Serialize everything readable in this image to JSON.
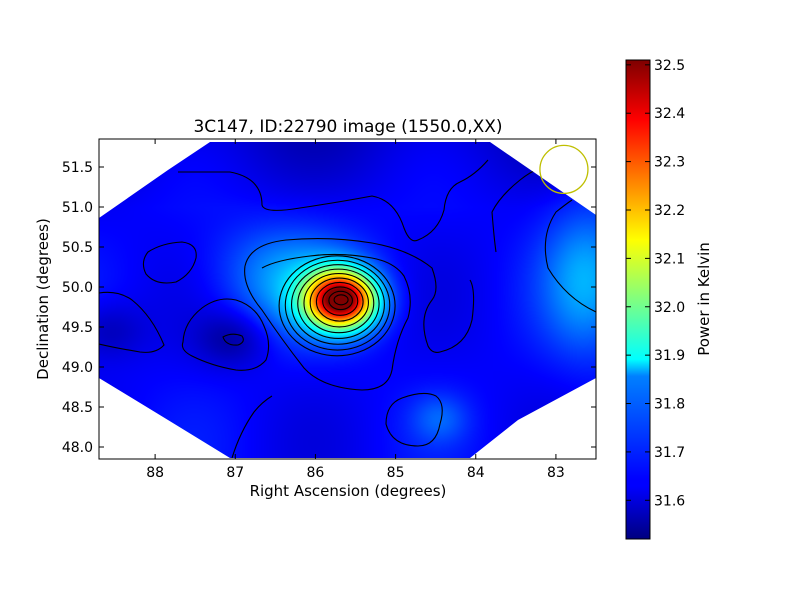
{
  "chart_data": {
    "type": "heatmap",
    "title": "3C147, ID:22790 image (1550.0,XX)",
    "xlabel": "Right Ascension (degrees)",
    "ylabel": "Declination (degrees)",
    "xlim": [
      88.7,
      82.5
    ],
    "ylim": [
      47.85,
      51.85
    ],
    "x_axis_inverted": true,
    "x_ticks": [
      "88",
      "87",
      "86",
      "85",
      "84",
      "83"
    ],
    "x_tick_values": [
      88,
      87,
      86,
      85,
      84,
      83
    ],
    "y_ticks": [
      "48.0",
      "48.5",
      "49.0",
      "49.5",
      "50.0",
      "50.5",
      "51.0",
      "51.5"
    ],
    "y_tick_values": [
      48.0,
      48.5,
      49.0,
      49.5,
      50.0,
      50.5,
      51.0,
      51.5
    ],
    "colormap": "jet",
    "colorbar": {
      "label": "Power in Kelvin",
      "range": [
        31.52,
        32.51
      ],
      "ticks": [
        "31.6",
        "31.7",
        "31.8",
        "31.9",
        "32.0",
        "32.1",
        "32.2",
        "32.3",
        "32.4",
        "32.5"
      ],
      "tick_values": [
        31.6,
        31.7,
        31.8,
        31.9,
        32.0,
        32.1,
        32.2,
        32.3,
        32.4,
        32.5
      ]
    },
    "background_level": 31.64,
    "sources": [
      {
        "ra": 85.68,
        "dec": 49.84,
        "peak": 32.5,
        "kind": "bright source"
      },
      {
        "ra": 86.2,
        "dec": 49.95,
        "peak": 31.78,
        "kind": "halo"
      },
      {
        "ra": 82.6,
        "dec": 50.1,
        "peak": 31.8,
        "kind": "edge brightening"
      },
      {
        "ra": 84.45,
        "dec": 48.35,
        "peak": 31.72,
        "kind": "faint blob"
      },
      {
        "ra": 87.03,
        "dec": 49.36,
        "peak": 31.55,
        "kind": "dip"
      },
      {
        "ra": 88.6,
        "dec": 49.45,
        "peak": 31.57,
        "kind": "dip"
      },
      {
        "ra": 86.5,
        "dec": 50.4,
        "peak": 31.69,
        "kind": "ridge"
      }
    ],
    "beam_marker": {
      "ra": 82.9,
      "dec": 51.47,
      "color": "#bfbf00"
    },
    "grid": false,
    "contours": true
  }
}
